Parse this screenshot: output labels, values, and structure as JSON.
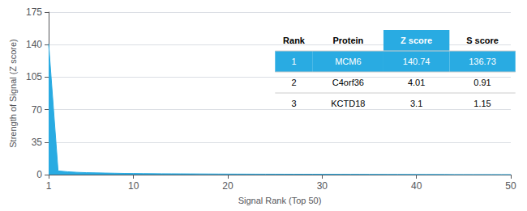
{
  "chart_data": {
    "type": "area",
    "xlabel": "Signal Rank (Top 50)",
    "ylabel": "Strength of Signal (Z score)",
    "color": "#29abe2",
    "x": [
      1,
      2,
      3,
      4,
      5,
      6,
      7,
      8,
      9,
      10,
      11,
      12,
      13,
      14,
      15,
      16,
      17,
      18,
      19,
      20,
      21,
      22,
      23,
      24,
      25,
      26,
      27,
      28,
      29,
      30,
      31,
      32,
      33,
      34,
      35,
      36,
      37,
      38,
      39,
      40,
      41,
      42,
      43,
      44,
      45,
      46,
      47,
      48,
      49,
      50
    ],
    "values": [
      140.74,
      4.01,
      3.1,
      2.5,
      2.1,
      1.9,
      1.7,
      1.5,
      1.3,
      1.2,
      1.1,
      1.0,
      0.95,
      0.9,
      0.85,
      0.8,
      0.75,
      0.7,
      0.65,
      0.6,
      0.58,
      0.55,
      0.52,
      0.5,
      0.48,
      0.46,
      0.44,
      0.42,
      0.4,
      0.38,
      0.36,
      0.34,
      0.32,
      0.3,
      0.28,
      0.26,
      0.24,
      0.22,
      0.2,
      0.18,
      0.16,
      0.14,
      0.12,
      0.1,
      0.09,
      0.08,
      0.07,
      0.06,
      0.05,
      0.04
    ],
    "xlim": [
      1,
      50
    ],
    "xticks": [
      1,
      10,
      20,
      30,
      40,
      50
    ],
    "ylim": [
      0,
      175
    ],
    "yticks": [
      0,
      35,
      70,
      105,
      140,
      175
    ],
    "grid": true,
    "table": {
      "columns": [
        "Rank",
        "Protein",
        "Z score",
        "S score"
      ],
      "rows": [
        [
          "1",
          "MCM6",
          "140.74",
          "136.73"
        ],
        [
          "2",
          "C4orf36",
          "4.01",
          "0.91"
        ],
        [
          "3",
          "KCTD18",
          "3.1",
          "1.15"
        ]
      ],
      "highlight_row": 1,
      "highlight_column": "Z score",
      "highlight_color": "#29abe2",
      "highlight_text_color": "#ffffff"
    }
  }
}
